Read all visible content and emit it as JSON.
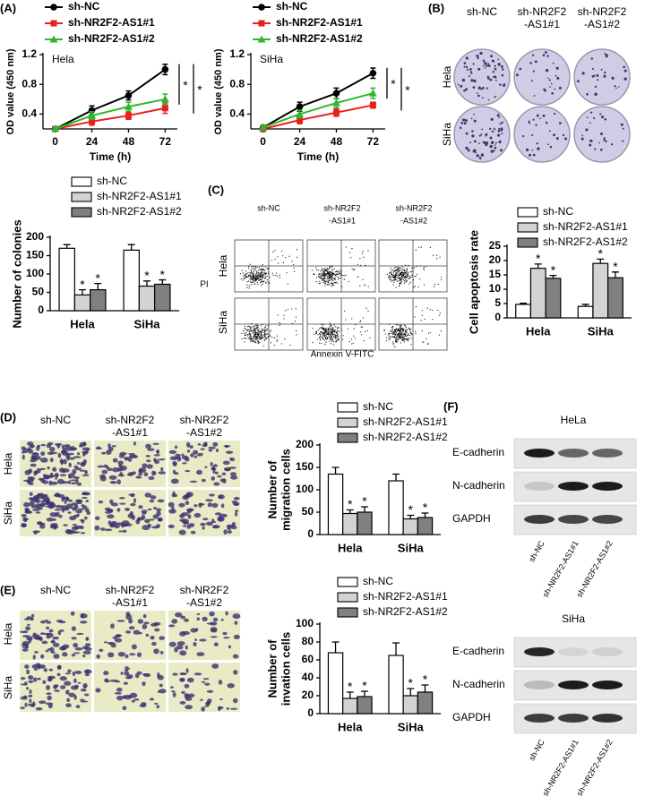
{
  "panel_labels": [
    "(A)",
    "(B)",
    "(C)",
    "(D)",
    "(E)",
    "(F)"
  ],
  "chart_data": [
    {
      "type": "line",
      "label": "Hela",
      "xlabel": "Time (h)",
      "ylabel": "OD value (450 nm)",
      "x": [
        0,
        24,
        48,
        72
      ],
      "xlim": [
        -8,
        80
      ],
      "xticks": [
        0,
        24,
        48,
        72
      ],
      "ylim": [
        0.2,
        1.2
      ],
      "yticks": [
        0.4,
        0.8,
        1.2
      ],
      "legend": "top",
      "annotations": [
        "*",
        "*"
      ],
      "series": [
        {
          "name": "sh-NC",
          "color": "#000000",
          "marker": "circle",
          "values": [
            0.2,
            0.45,
            0.65,
            1.0
          ],
          "errors": [
            0.03,
            0.06,
            0.06,
            0.07
          ]
        },
        {
          "name": "sh-NR2F2-AS1#1",
          "color": "#e8201c",
          "marker": "square",
          "values": [
            0.2,
            0.3,
            0.38,
            0.48
          ],
          "errors": [
            0.03,
            0.05,
            0.05,
            0.07
          ]
        },
        {
          "name": "sh-NR2F2-AS1#2",
          "color": "#2db82d",
          "marker": "triangle",
          "values": [
            0.2,
            0.38,
            0.5,
            0.6
          ],
          "errors": [
            0.03,
            0.05,
            0.06,
            0.07
          ]
        }
      ]
    },
    {
      "type": "line",
      "label": "SiHa",
      "xlabel": "Time (h)",
      "ylabel": "OD value (450 nm)",
      "x": [
        0,
        24,
        48,
        72
      ],
      "xlim": [
        -8,
        80
      ],
      "xticks": [
        0,
        24,
        48,
        72
      ],
      "ylim": [
        0.2,
        1.2
      ],
      "yticks": [
        0.4,
        0.8,
        1.2
      ],
      "legend": "top",
      "annotations": [
        "*",
        "*"
      ],
      "series": [
        {
          "name": "sh-NC",
          "color": "#000000",
          "marker": "circle",
          "values": [
            0.22,
            0.5,
            0.68,
            0.95
          ],
          "errors": [
            0.03,
            0.06,
            0.07,
            0.07
          ]
        },
        {
          "name": "sh-NR2F2-AS1#1",
          "color": "#e8201c",
          "marker": "square",
          "values": [
            0.2,
            0.32,
            0.42,
            0.52
          ],
          "errors": [
            0.03,
            0.05,
            0.05,
            0.04
          ]
        },
        {
          "name": "sh-NR2F2-AS1#2",
          "color": "#2db82d",
          "marker": "triangle",
          "values": [
            0.22,
            0.4,
            0.55,
            0.68
          ],
          "errors": [
            0.03,
            0.05,
            0.06,
            0.07
          ]
        }
      ]
    },
    {
      "type": "bar",
      "ylabel": "Number of colonies",
      "categories": [
        "Hela",
        "SiHa"
      ],
      "ylim": [
        0,
        200
      ],
      "yticks": [
        0,
        50,
        100,
        150,
        200
      ],
      "legend": "top",
      "series": [
        {
          "name": "sh-NC",
          "color": "#ffffff",
          "values": [
            170,
            165
          ],
          "errors": [
            10,
            15
          ]
        },
        {
          "name": "sh-NR2F2-AS1#1",
          "color": "#d3d3d3",
          "values": [
            43,
            67
          ],
          "errors": [
            14,
            14
          ],
          "markers": [
            "*",
            "*"
          ]
        },
        {
          "name": "sh-NR2F2-AS1#2",
          "color": "#808080",
          "values": [
            57,
            72
          ],
          "errors": [
            17,
            12
          ],
          "markers": [
            "*",
            "*"
          ]
        }
      ]
    },
    {
      "type": "bar",
      "ylabel": "Cell apoptosis rate",
      "categories": [
        "Hela",
        "SiHa"
      ],
      "ylim": [
        0,
        25
      ],
      "yticks": [
        0,
        5,
        10,
        15,
        20,
        25
      ],
      "legend": "top",
      "series": [
        {
          "name": "sh-NC",
          "color": "#ffffff",
          "values": [
            4.7,
            4.0
          ],
          "errors": [
            0.4,
            0.7
          ]
        },
        {
          "name": "sh-NR2F2-AS1#1",
          "color": "#d3d3d3",
          "values": [
            17.3,
            19.0
          ],
          "errors": [
            1.5,
            1.5
          ],
          "markers": [
            "*",
            "*"
          ]
        },
        {
          "name": "sh-NR2F2-AS1#2",
          "color": "#808080",
          "values": [
            13.8,
            14.0
          ],
          "errors": [
            1.0,
            2.0
          ],
          "markers": [
            "*",
            "*"
          ]
        }
      ]
    },
    {
      "type": "bar",
      "ylabel": [
        "Number of",
        "migration cells"
      ],
      "categories": [
        "Hela",
        "SiHa"
      ],
      "ylim": [
        0,
        200
      ],
      "yticks": [
        0,
        50,
        100,
        150,
        200
      ],
      "legend": "top",
      "series": [
        {
          "name": "sh-NC",
          "color": "#ffffff",
          "values": [
            135,
            120
          ],
          "errors": [
            15,
            15
          ]
        },
        {
          "name": "sh-NR2F2-AS1#1",
          "color": "#d3d3d3",
          "values": [
            47,
            35
          ],
          "errors": [
            8,
            8
          ],
          "markers": [
            "*",
            "*"
          ]
        },
        {
          "name": "sh-NR2F2-AS1#2",
          "color": "#808080",
          "values": [
            50,
            38
          ],
          "errors": [
            12,
            10
          ],
          "markers": [
            "*",
            "*"
          ]
        }
      ]
    },
    {
      "type": "bar",
      "ylabel": [
        "Number of",
        "invation cells"
      ],
      "categories": [
        "Hela",
        "SiHa"
      ],
      "ylim": [
        0,
        100
      ],
      "yticks": [
        0,
        20,
        40,
        60,
        80,
        100
      ],
      "legend": "top",
      "series": [
        {
          "name": "sh-NC",
          "color": "#ffffff",
          "values": [
            68,
            65
          ],
          "errors": [
            12,
            14
          ]
        },
        {
          "name": "sh-NR2F2-AS1#1",
          "color": "#d3d3d3",
          "values": [
            17,
            20
          ],
          "errors": [
            7,
            8
          ],
          "markers": [
            "*",
            "*"
          ]
        },
        {
          "name": "sh-NR2F2-AS1#2",
          "color": "#808080",
          "values": [
            19,
            24
          ],
          "errors": [
            6,
            8
          ],
          "markers": [
            "*",
            "*"
          ]
        }
      ]
    }
  ],
  "panel_b": {
    "columns": [
      [
        "sh-NC"
      ],
      [
        "sh-NR2F2",
        "-AS1#1"
      ],
      [
        "sh-NR2F2",
        "-AS1#2"
      ]
    ],
    "rows": [
      "Hela",
      "SiHa"
    ]
  },
  "panel_c": {
    "columns": [
      [
        "sh-NC"
      ],
      [
        "sh-NR2F2",
        "-AS1#1"
      ],
      [
        "sh-NR2F2",
        "-AS1#2"
      ]
    ],
    "rows": [
      "Hela",
      "SiHa"
    ],
    "ylabel": "PI",
    "xlabel": "Annexin V-FITC"
  },
  "panel_d": {
    "columns": [
      [
        "sh-NC"
      ],
      [
        "sh-NR2F2",
        "-AS1#1"
      ],
      [
        "sh-NR2F2",
        "-AS1#2"
      ]
    ],
    "rows": [
      "Hela",
      "SiHa"
    ]
  },
  "panel_e": {
    "columns": [
      [
        "sh-NC"
      ],
      [
        "sh-NR2F2",
        "-AS1#1"
      ],
      [
        "sh-NR2F2",
        "-AS1#2"
      ]
    ],
    "rows": [
      "Hela",
      "SiHa"
    ]
  },
  "panel_f": {
    "blots": [
      {
        "title": "HeLa",
        "rows": [
          "E-cadherin",
          "N-cadherin",
          "GAPDH"
        ],
        "lanes": [
          "sh-NC",
          "sh-NR2F2-AS1#1",
          "sh-NR2F2-AS1#2"
        ]
      },
      {
        "title": "SiHa",
        "rows": [
          "E-cadherin",
          "N-cadherin",
          "GAPDH"
        ],
        "lanes": [
          "sh-NC",
          "sh-NR2F2-AS1#1",
          "sh-NR2F2-AS1#2"
        ]
      }
    ]
  }
}
